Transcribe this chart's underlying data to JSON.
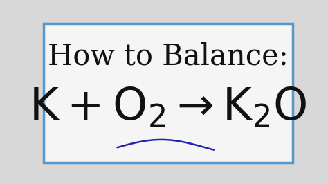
{
  "title_text": "How to Balance:",
  "bg_color": "#d8d8d8",
  "inner_bg_color": "#f5f5f5",
  "text_color": "#111111",
  "border_color": "#5599cc",
  "title_fontsize": 30,
  "eq_fontsize": 46,
  "sub_fontsize": 26,
  "border_linewidth": 2.5,
  "wave_color": "#2222aa",
  "wave_linewidth": 1.8,
  "arrow": "→"
}
